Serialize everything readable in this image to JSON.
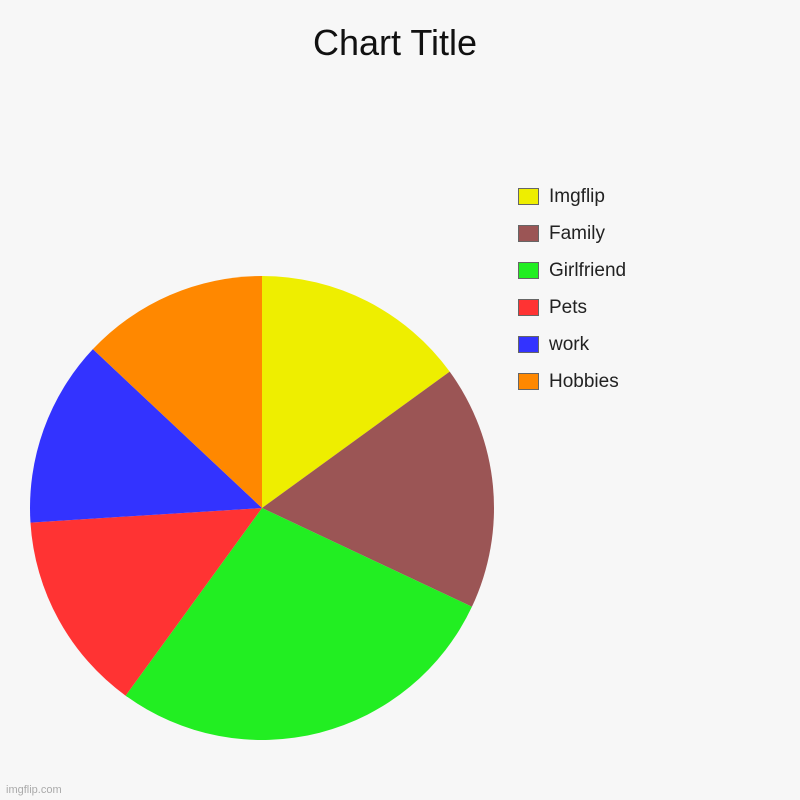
{
  "chart_data": {
    "type": "pie",
    "title": "Chart Title",
    "labels": [
      "Imgflip",
      "Family",
      "Girlfriend",
      "Pets",
      "work",
      "Hobbies"
    ],
    "values": [
      15,
      17,
      28,
      14,
      13,
      13
    ],
    "colors": [
      "#eeee00",
      "#9b5555",
      "#22ee22",
      "#ff3333",
      "#3333ff",
      "#ff8800"
    ],
    "legend_position": "right",
    "legend_order": [
      "Imgflip",
      "Family",
      "Girlfriend",
      "Pets",
      "work",
      "Hobbies"
    ],
    "start_angle": "top",
    "direction": "clockwise"
  },
  "watermark": "imgflip.com"
}
